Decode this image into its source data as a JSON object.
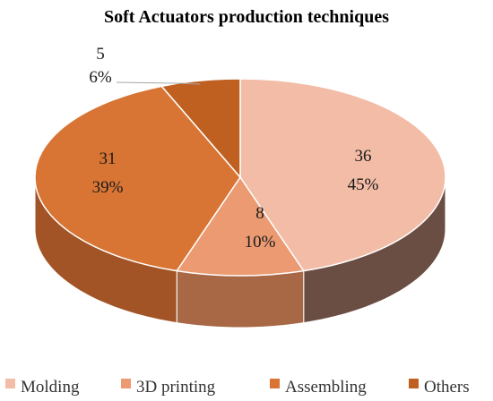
{
  "chart_data": {
    "type": "pie",
    "title": "Soft Actuators production techniques",
    "categories": [
      "Molding",
      "3D printing",
      "Assembling",
      "Others"
    ],
    "values": [
      36,
      8,
      31,
      5
    ],
    "percent_labels": [
      "45%",
      "10%",
      "39%",
      "6%"
    ],
    "value_labels": [
      "36",
      "8",
      "31",
      "5"
    ],
    "legend_position": "bottom",
    "colors": [
      "#F2BCA6",
      "#EC9A72",
      "#D97534",
      "#BF5F20"
    ],
    "side_colors": [
      "#6A4D43",
      "#A86846",
      "#A25426",
      "#8C451A"
    ]
  }
}
